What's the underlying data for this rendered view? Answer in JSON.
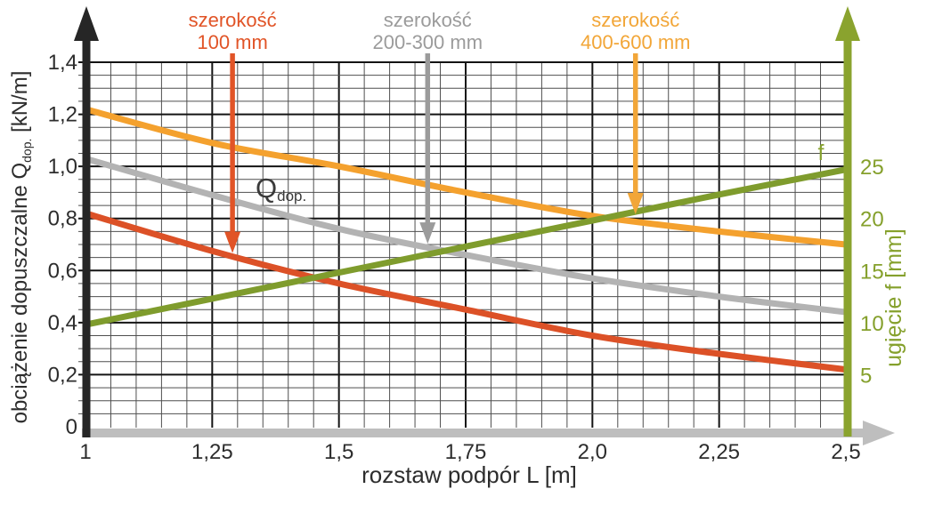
{
  "colors": {
    "red_curve": "#DC5127",
    "red_label": "#E15427",
    "gray_curve": "#B3B3B3",
    "gray_label": "#9B9B9B",
    "orange_curve": "#F4A12E",
    "orange_label": "#F2A638",
    "green_curve": "#7F9C2D",
    "green_axis": "#8AA32E",
    "green_text": "#85A02C",
    "black_axis": "#262626",
    "x_axis_bar": "#BEBEBE",
    "grid_minor": "#4F4F4F",
    "grid_major": "#141414",
    "tick_text": "#2D2D2D"
  },
  "chart_data": {
    "type": "line",
    "title": "",
    "xlabel": "rozstaw podpór L [m]",
    "ylabel_left": {
      "pre": "obciążenie dopuszczalne Q",
      "sub": "dop.",
      "post": " [kN/m]"
    },
    "ylabel_right": "ugięcie f [mm]",
    "xlim": [
      1,
      2.5
    ],
    "ylim_left": [
      0,
      1.4
    ],
    "ylim_right": [
      0,
      35
    ],
    "grid": {
      "x_minor_step": 0.05,
      "x_major_step": 0.25,
      "y_minor_step": 0.05,
      "y_major_step": 0.2,
      "grid_on": true
    },
    "x_ticks": [
      {
        "value": 1,
        "label": "1"
      },
      {
        "value": 1.25,
        "label": "1,25"
      },
      {
        "value": 1.5,
        "label": "1,5"
      },
      {
        "value": 1.75,
        "label": "1,75"
      },
      {
        "value": 2.0,
        "label": "2,0"
      },
      {
        "value": 2.25,
        "label": "2,25"
      },
      {
        "value": 2.5,
        "label": "2,5"
      }
    ],
    "y_left_ticks": [
      {
        "value": 1.4,
        "label": "1,4"
      },
      {
        "value": 1.2,
        "label": "1,2"
      },
      {
        "value": 1.0,
        "label": "1,0"
      },
      {
        "value": 0.8,
        "label": "0,8"
      },
      {
        "value": 0.6,
        "label": "0,6"
      },
      {
        "value": 0.4,
        "label": "0,4"
      },
      {
        "value": 0.2,
        "label": "0,2"
      },
      {
        "value": 0,
        "label": "0"
      }
    ],
    "y_right_ticks": [
      {
        "value": 25,
        "label": "25"
      },
      {
        "value": 20,
        "label": "20"
      },
      {
        "value": 15,
        "label": "15"
      },
      {
        "value": 10,
        "label": "10"
      },
      {
        "value": 5,
        "label": "5"
      }
    ],
    "x": [
      1,
      1.25,
      1.5,
      1.75,
      2.0,
      2.25,
      2.5
    ],
    "series": [
      {
        "name": "szerokość 100 mm",
        "axis": "left",
        "color_key": "red_curve",
        "values": [
          0.82,
          0.675,
          0.55,
          0.45,
          0.35,
          0.28,
          0.22
        ]
      },
      {
        "name": "szerokość 200-300 mm",
        "axis": "left",
        "color_key": "gray_curve",
        "values": [
          1.03,
          0.89,
          0.76,
          0.66,
          0.57,
          0.5,
          0.44
        ]
      },
      {
        "name": "szerokość 400-600 mm",
        "axis": "left",
        "color_key": "orange_curve",
        "values": [
          1.22,
          1.09,
          1.0,
          0.9,
          0.81,
          0.75,
          0.7
        ]
      },
      {
        "name": "ugięcie f",
        "axis": "right",
        "color_key": "green_curve",
        "values": [
          9.8,
          12.3,
          14.8,
          17.3,
          19.8,
          22.3,
          24.7
        ]
      }
    ],
    "annotations": {
      "callouts": [
        {
          "line1": "szerokość",
          "line2": "100 mm",
          "color_key": "red_label",
          "arrow_x": 1.29,
          "arrow_tip_q": 0.667
        },
        {
          "line1": "szerokość",
          "line2": "200-300 mm",
          "color_key": "gray_label",
          "arrow_x": 1.675,
          "arrow_tip_q": 0.703
        },
        {
          "line1": "szerokość",
          "line2": "400-600 mm",
          "color_key": "orange_label",
          "arrow_x": 2.085,
          "arrow_tip_q": 0.816
        }
      ],
      "qdop_label": {
        "main": "Q",
        "sub": "dop."
      },
      "f_label": "f"
    }
  }
}
